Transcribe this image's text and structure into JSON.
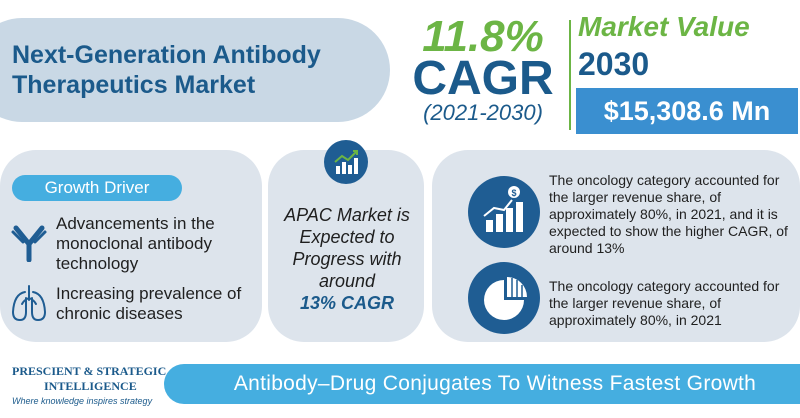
{
  "title": {
    "line1": "Next-Generation Antibody",
    "line2": "Therapeutics Market"
  },
  "cagr": {
    "percent": "11.8%",
    "label": "CAGR",
    "period": "(2021-2030)"
  },
  "market_value": {
    "heading": "Market Value",
    "year": "2030",
    "amount": "$15,308.6 Mn"
  },
  "growth_driver": {
    "badge": "Growth Driver",
    "items": [
      {
        "icon": "antibody-icon",
        "text": "Advancements in the monoclonal antibody technology"
      },
      {
        "icon": "lungs-icon",
        "text": "Increasing prevalence of chronic diseases"
      }
    ]
  },
  "apac": {
    "icon": "growth-chart-icon",
    "text": "APAC Market is Expected to Progress with around",
    "highlight": "13% CAGR"
  },
  "segments": [
    {
      "icon": "revenue-growth-icon",
      "text": "The oncology category accounted for the larger revenue share, of approximately 80%, in 2021, and it is expected to show the higher CAGR, of around 13%"
    },
    {
      "icon": "pie-share-icon",
      "text": "The oncology category accounted for the larger revenue share, of approximately 80%, in 2021"
    }
  ],
  "logo": {
    "line1": "PRESCIENT & STRATEGIC",
    "line2": "INTELLIGENCE",
    "tagline": "Where knowledge inspires strategy"
  },
  "footer": {
    "banner": "Antibody–Drug Conjugates To Witness Fastest Growth"
  },
  "colors": {
    "navy": "#1b5a8b",
    "green": "#6cb545",
    "blue": "#45aee0",
    "panel": "#dde4ec"
  }
}
